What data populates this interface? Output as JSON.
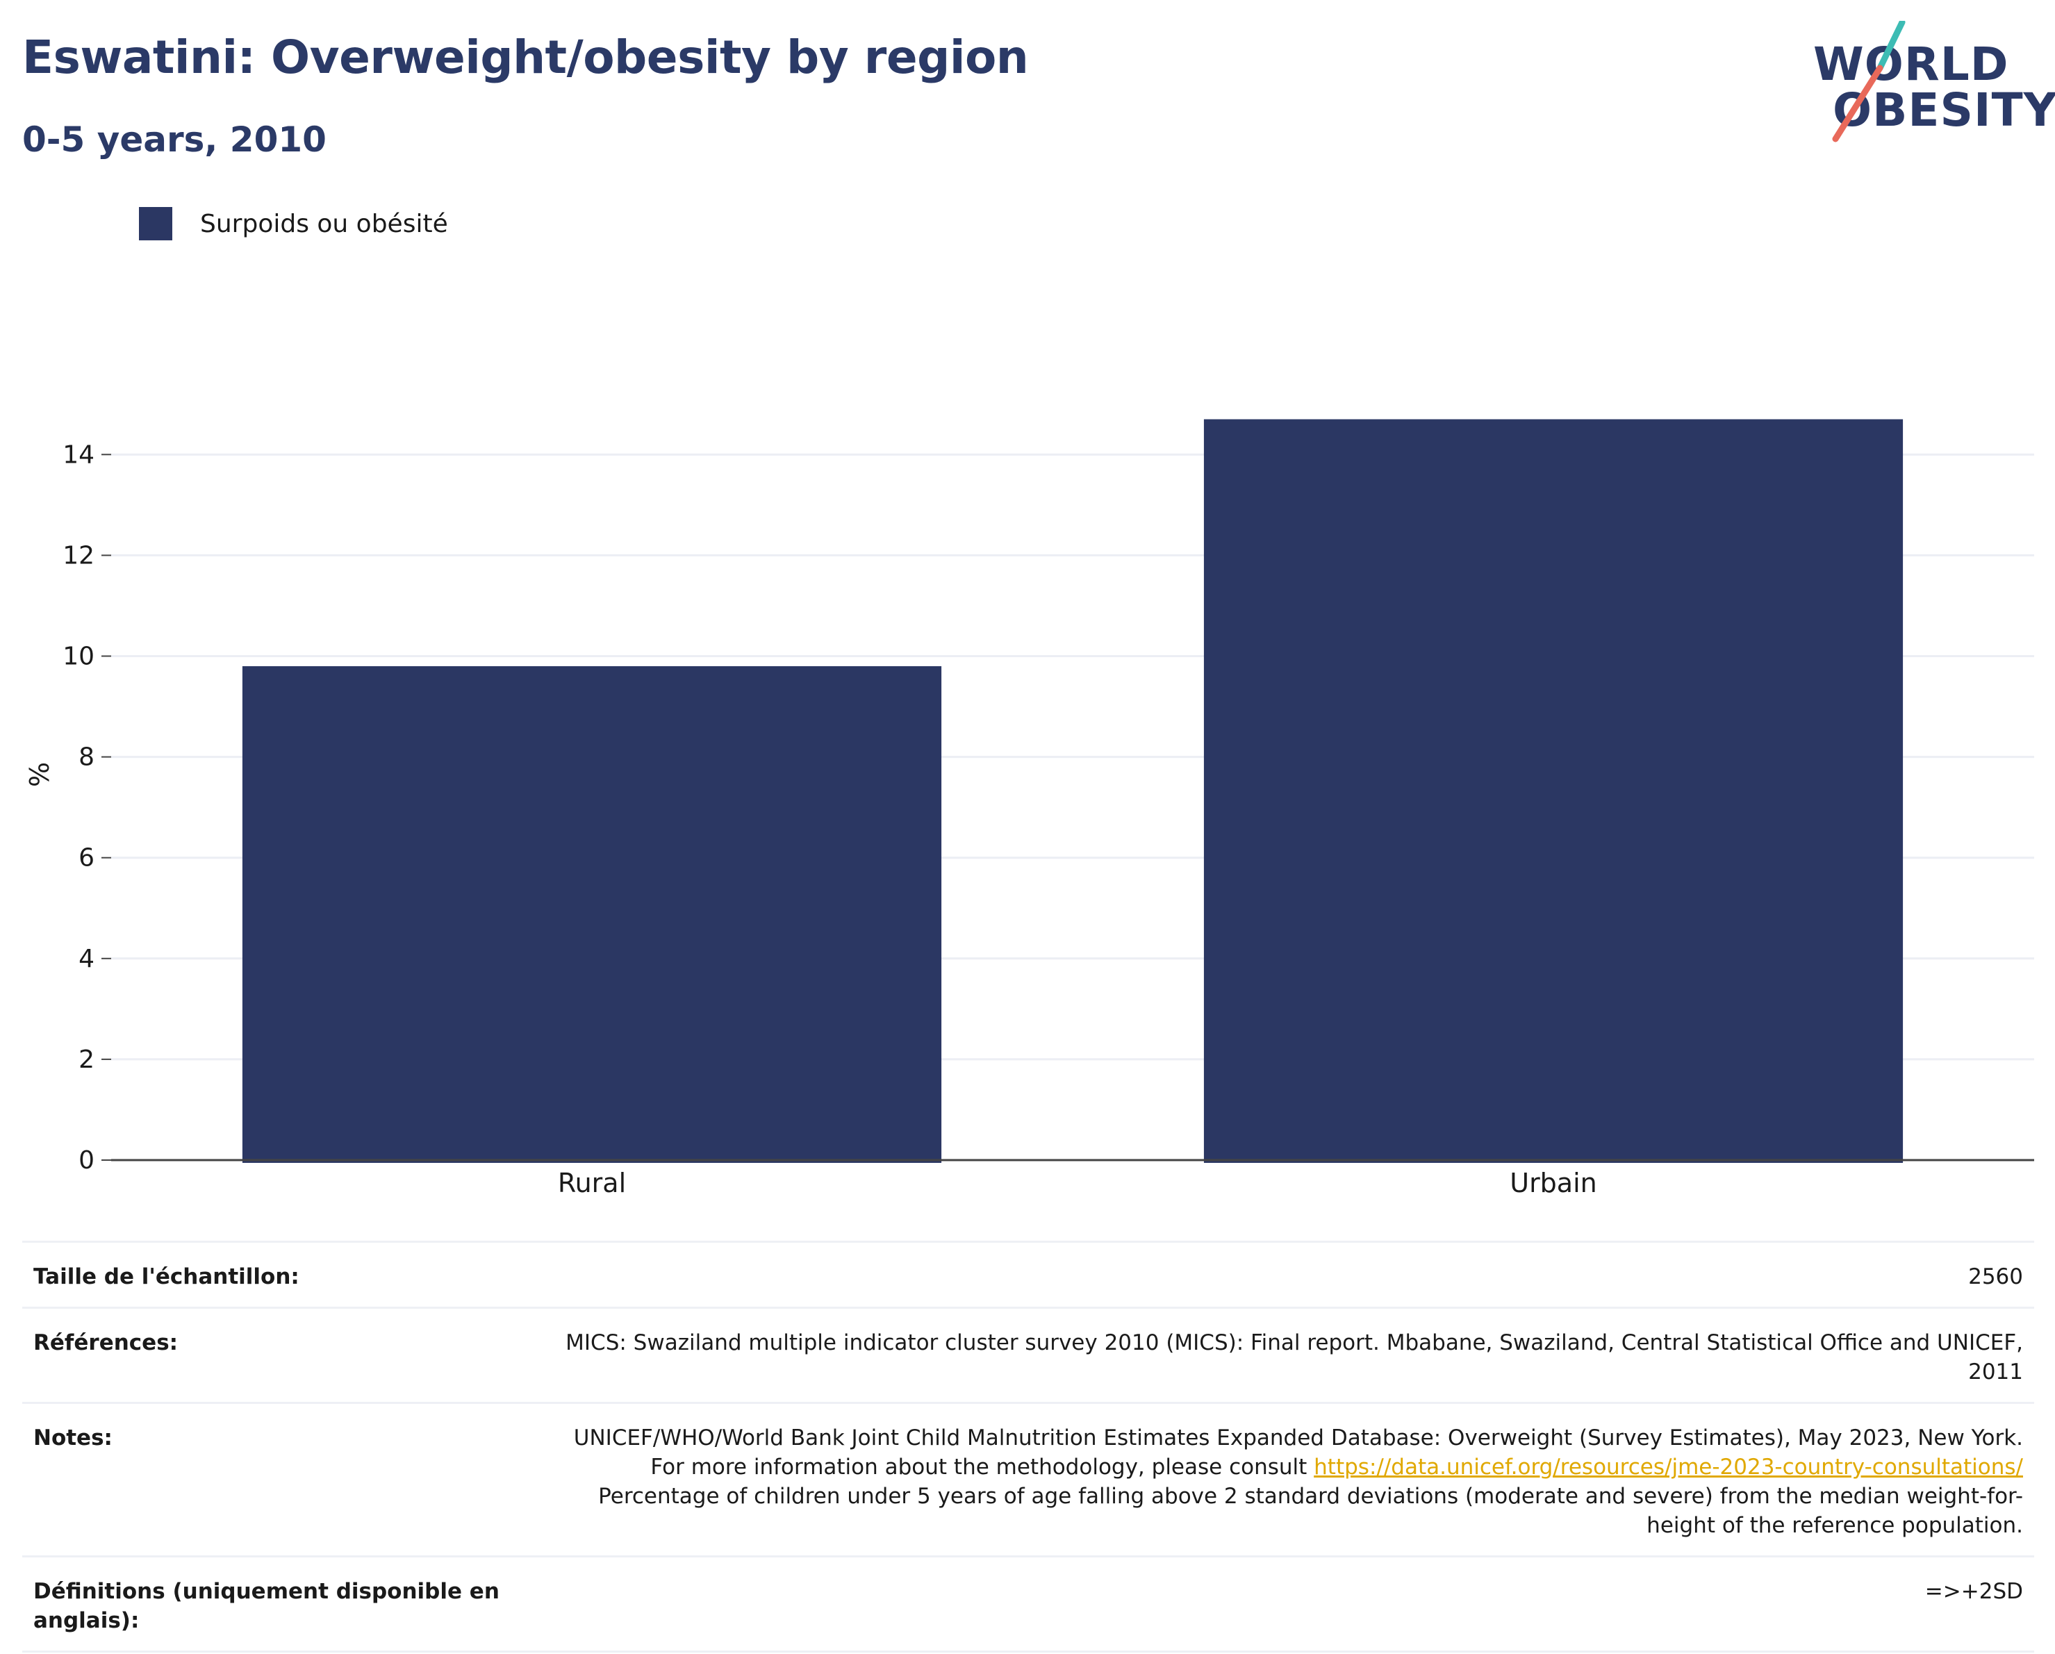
{
  "header": {
    "title": "Eswatini: Overweight/obesity by region",
    "subtitle": "0-5 years, 2010"
  },
  "logo": {
    "line1": "WORLD",
    "line2": "OBESITY",
    "colors": {
      "text": "#2b3a67",
      "teal": "#3dbcb4",
      "coral": "#e8695a"
    }
  },
  "legend": {
    "entries": [
      {
        "label": "Surpoids ou obésité",
        "color": "#2b3763"
      }
    ]
  },
  "chart_data": {
    "type": "bar",
    "categories": [
      "Rural",
      "Urbain"
    ],
    "series": [
      {
        "name": "Surpoids ou obésité",
        "values": [
          9.8,
          14.7
        ],
        "color": "#2b3763"
      }
    ],
    "ylabel": "%",
    "xlabel": "",
    "ylim": [
      0,
      15.3
    ],
    "yticks": [
      0,
      2,
      4,
      6,
      8,
      10,
      12,
      14
    ],
    "grid": true,
    "legend_position": "top-left"
  },
  "info": {
    "rows": [
      {
        "label": "Taille de l'échantillon:",
        "value": "2560"
      },
      {
        "label": "Références:",
        "value": "MICS: Swaziland multiple indicator cluster survey 2010 (MICS): Final report. Mbabane, Swaziland, Central Statistical Office and UNICEF, 2011"
      },
      {
        "label": "Notes:",
        "value_before_link": "UNICEF/WHO/World Bank Joint Child Malnutrition Estimates Expanded Database: Overweight (Survey Estimates), May 2023, New York. For more information about the methodology, please consult ",
        "link": "https://data.unicef.org/resources/jme-2023-country-consultations/",
        "value_after_link": " Percentage of children under 5 years of age falling above 2 standard deviations (moderate and severe) from the median weight-for-height of the reference population."
      },
      {
        "label": "Définitions (uniquement disponible en anglais):",
        "value": "=>+2SD"
      }
    ]
  }
}
